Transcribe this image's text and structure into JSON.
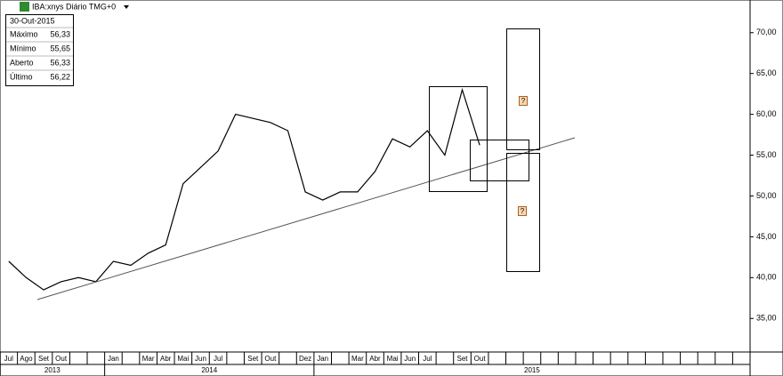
{
  "chart_data": {
    "type": "line",
    "title": "IBA:xnys Diário TMG+0",
    "info": {
      "date": "30-Out-2015",
      "rows": [
        [
          "Máximo",
          "56,33"
        ],
        [
          "Mínimo",
          "55,65"
        ],
        [
          "Aberto",
          "56,33"
        ],
        [
          "Último",
          "56,22"
        ]
      ]
    },
    "categories": [
      "Jul",
      "Ago",
      "Set",
      "Out",
      null,
      null,
      "Jan",
      null,
      "Mar",
      "Abr",
      "Mai",
      "Jun",
      "Jul",
      null,
      "Set",
      "Out",
      null,
      "Dez",
      "Jan",
      null,
      "Mar",
      "Abr",
      "Mai",
      "Jun",
      "Jul",
      null,
      "Set",
      "Out",
      null,
      null,
      null,
      null,
      null,
      null,
      null,
      null,
      null,
      null,
      null,
      null,
      null,
      null,
      null
    ],
    "years": [
      "2013",
      "2014",
      "2015"
    ],
    "values": [
      42,
      40,
      38.5,
      39.5,
      40,
      39.5,
      42,
      41.5,
      43,
      44,
      51.5,
      53.5,
      55.5,
      60,
      59.5,
      59,
      58,
      50.5,
      49.5,
      50.5,
      50.5,
      53,
      57,
      56,
      58,
      55,
      63,
      56.22,
      null,
      null,
      null,
      null,
      null,
      null,
      null,
      null,
      null,
      null,
      null,
      null,
      null,
      null,
      null
    ],
    "color": "#000000",
    "ylim": [
      31,
      74
    ],
    "yticks": [
      {
        "value": 35,
        "label": "35,00"
      },
      {
        "value": 40,
        "label": "40,00"
      },
      {
        "value": 45,
        "label": "45,00"
      },
      {
        "value": 50,
        "label": "50,00"
      },
      {
        "value": 55,
        "label": "55,00"
      },
      {
        "value": 60,
        "label": "60,00"
      },
      {
        "value": 65,
        "label": "65,00"
      },
      {
        "value": 70,
        "label": "70,00"
      }
    ],
    "annotations": [
      "?",
      "?"
    ]
  }
}
